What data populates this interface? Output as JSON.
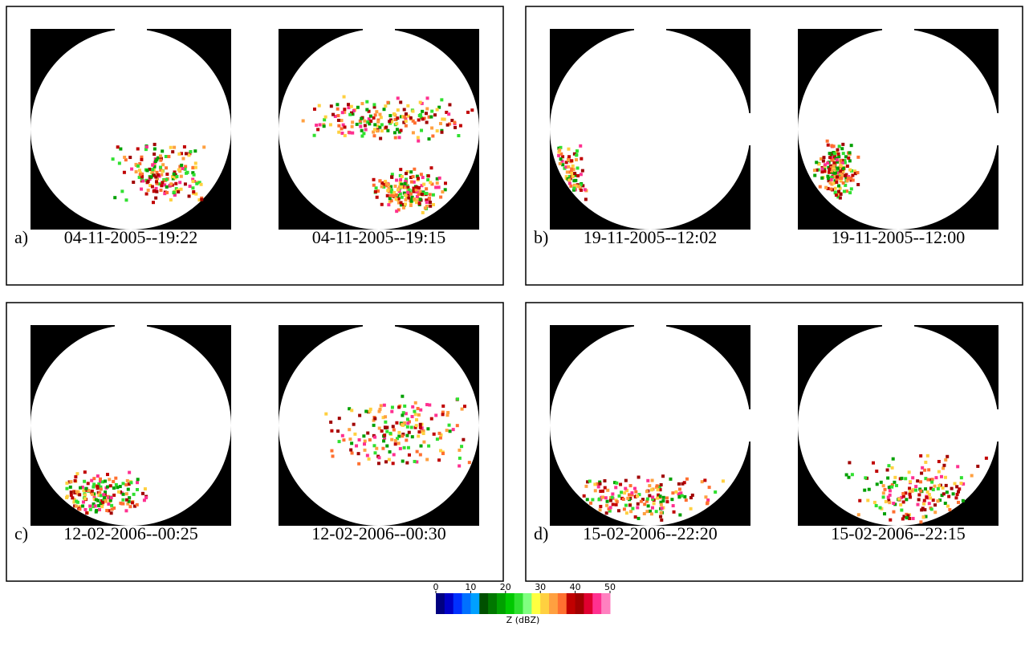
{
  "panels": [
    {
      "label": "a)",
      "images": [
        {
          "caption": "04-11-2005--19:22"
        },
        {
          "caption": "04-11-2005--19:15"
        }
      ]
    },
    {
      "label": "b)",
      "images": [
        {
          "caption": "19-11-2005--12:02"
        },
        {
          "caption": "19-11-2005--12:00"
        }
      ]
    },
    {
      "label": "c)",
      "images": [
        {
          "caption": "12-02-2006--00:25"
        },
        {
          "caption": "12-02-2006--00:30"
        }
      ]
    },
    {
      "label": "d)",
      "images": [
        {
          "caption": "15-02-2006--22:20"
        },
        {
          "caption": "15-02-2006--22:15"
        }
      ]
    }
  ],
  "colorbar": {
    "lim": [
      0,
      50
    ],
    "ticks": [
      0,
      10,
      20,
      30,
      40,
      50
    ],
    "label": "Z (dBZ)",
    "colors": [
      "#000080",
      "#0000c8",
      "#0030ff",
      "#0070ff",
      "#00a0ff",
      "#005000",
      "#007800",
      "#00a000",
      "#00c800",
      "#30e030",
      "#80ff80",
      "#ffff40",
      "#ffd040",
      "#ffa040",
      "#ff7030",
      "#c00000",
      "#a00000",
      "#e00030",
      "#ff3090",
      "#ff80c0"
    ]
  }
}
